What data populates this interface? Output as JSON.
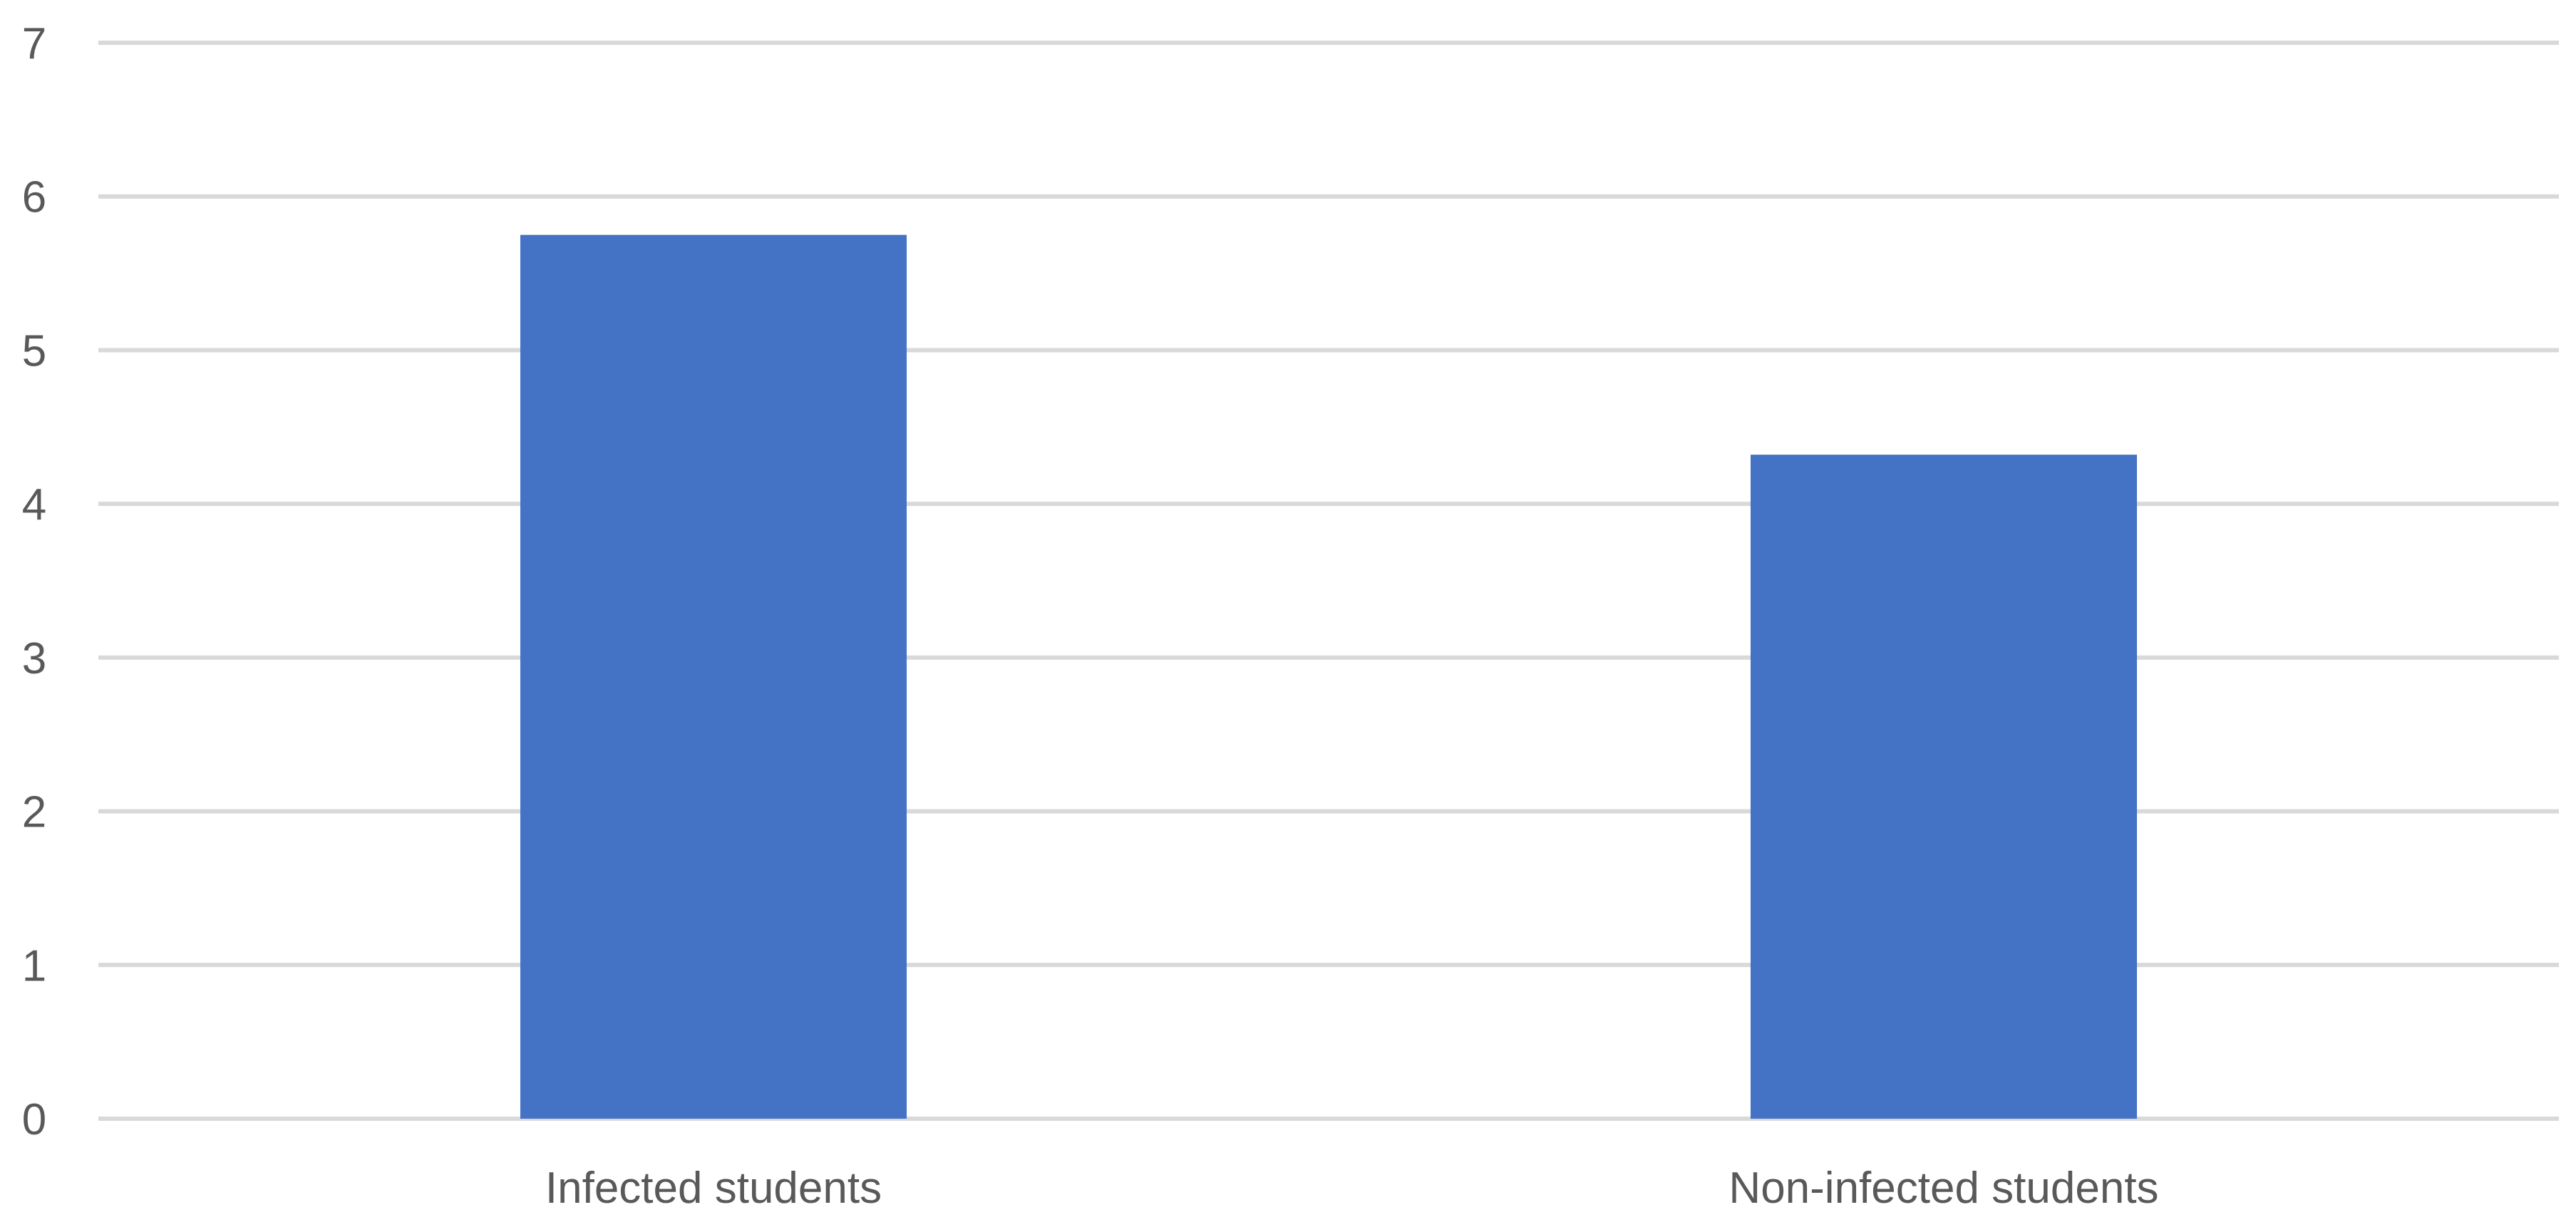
{
  "chart_data": {
    "type": "bar",
    "categories": [
      "Infected students",
      "Non-infected students"
    ],
    "values": [
      5.75,
      4.32
    ],
    "title": "",
    "xlabel": "",
    "ylabel": "",
    "ylim": [
      0,
      7
    ],
    "yticks": [
      "0",
      "1",
      "2",
      "3",
      "4",
      "5",
      "6",
      "7"
    ],
    "grid": true,
    "legend": "none",
    "bar_color": "#4472c4",
    "grid_color": "#d9d9d9",
    "text_color": "#595959"
  }
}
